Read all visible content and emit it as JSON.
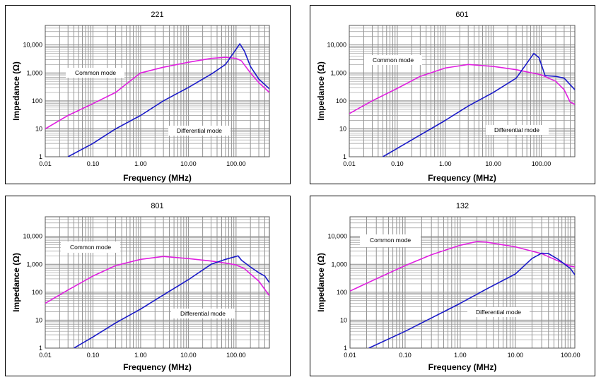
{
  "chart_data": [
    {
      "type": "line",
      "title": "221",
      "xlabel": "Frequency (MHz)",
      "ylabel": "Impedance (Ω)",
      "xscale": "log",
      "yscale": "log",
      "xlim": [
        0.01,
        500
      ],
      "ylim": [
        1,
        50000
      ],
      "x_ticks": [
        "0.01",
        "0.10",
        "1.00",
        "10.00",
        "100.00"
      ],
      "y_ticks": [
        "1",
        "10",
        "100",
        "1,000",
        "10,000"
      ],
      "grid": true,
      "annotations": {
        "common": "Common mode",
        "differential": "Differential mode"
      },
      "series": [
        {
          "name": "Common mode",
          "color": "#e020e0",
          "x": [
            0.01,
            0.03,
            0.1,
            0.3,
            0.5,
            1,
            3,
            10,
            30,
            60,
            100,
            130,
            200,
            300,
            500
          ],
          "y": [
            10,
            30,
            80,
            200,
            400,
            1000,
            1600,
            2400,
            3300,
            3600,
            3300,
            2700,
            1000,
            450,
            200
          ]
        },
        {
          "name": "Differential mode",
          "color": "#1a1ac8",
          "x": [
            0.03,
            0.1,
            0.3,
            1,
            3,
            10,
            30,
            60,
            100,
            120,
            150,
            200,
            300,
            500
          ],
          "y": [
            1,
            3,
            10,
            30,
            100,
            300,
            900,
            2000,
            7000,
            11000,
            6000,
            1700,
            600,
            270
          ]
        }
      ]
    },
    {
      "type": "line",
      "title": "601",
      "xlabel": "Frequency (MHz)",
      "ylabel": "Impedance (Ω)",
      "xscale": "log",
      "yscale": "log",
      "xlim": [
        0.01,
        500
      ],
      "ylim": [
        1,
        50000
      ],
      "x_ticks": [
        "0.01",
        "0.10",
        "1.00",
        "10.00",
        "100.00"
      ],
      "y_ticks": [
        "1",
        "10",
        "100",
        "1,000",
        "10,000"
      ],
      "grid": true,
      "annotations": {
        "common": "Common mode",
        "differential": "Differential mode"
      },
      "series": [
        {
          "name": "Common mode",
          "color": "#e020e0",
          "x": [
            0.01,
            0.03,
            0.1,
            0.3,
            1,
            3,
            10,
            30,
            100,
            200,
            300,
            400,
            500
          ],
          "y": [
            35,
            100,
            280,
            750,
            1500,
            2000,
            1700,
            1300,
            850,
            500,
            250,
            90,
            75
          ]
        },
        {
          "name": "Differential mode",
          "color": "#1a1ac8",
          "x": [
            0.05,
            0.1,
            0.3,
            1,
            3,
            10,
            30,
            50,
            70,
            90,
            120,
            200,
            300,
            500
          ],
          "y": [
            1,
            2,
            6,
            20,
            65,
            200,
            650,
            2200,
            5000,
            3500,
            800,
            750,
            650,
            250
          ]
        }
      ]
    },
    {
      "type": "line",
      "title": "801",
      "xlabel": "Frequency (MHz)",
      "ylabel": "Impedance (Ω)",
      "xscale": "log",
      "yscale": "log",
      "xlim": [
        0.01,
        500
      ],
      "ylim": [
        1,
        50000
      ],
      "x_ticks": [
        "0.01",
        "0.10",
        "1.00",
        "10.00",
        "100.00"
      ],
      "y_ticks": [
        "1",
        "10",
        "100",
        "1,000",
        "10,000"
      ],
      "grid": true,
      "annotations": {
        "common": "Common mode",
        "differential": "Differential mode"
      },
      "series": [
        {
          "name": "Common mode",
          "color": "#e020e0",
          "x": [
            0.01,
            0.03,
            0.1,
            0.3,
            1,
            3,
            10,
            30,
            60,
            100,
            150,
            200,
            300,
            500
          ],
          "y": [
            40,
            120,
            380,
            900,
            1500,
            1900,
            1600,
            1300,
            1100,
            950,
            700,
            450,
            250,
            75
          ]
        },
        {
          "name": "Differential mode",
          "color": "#1a1ac8",
          "x": [
            0.04,
            0.1,
            0.3,
            1,
            3,
            10,
            30,
            60,
            100,
            110,
            130,
            200,
            300,
            400,
            500
          ],
          "y": [
            1,
            2.5,
            8,
            25,
            80,
            280,
            1000,
            1500,
            1900,
            2000,
            1400,
            800,
            500,
            380,
            220
          ]
        }
      ]
    },
    {
      "type": "line",
      "title": "132",
      "xlabel": "Frequency (MHz)",
      "ylabel": "Impedance (Ω)",
      "xscale": "log",
      "yscale": "log",
      "xlim": [
        0.01,
        120
      ],
      "ylim": [
        1,
        50000
      ],
      "x_ticks": [
        "0.01",
        "0.10",
        "1.00",
        "10.00",
        "100.00"
      ],
      "y_ticks": [
        "1",
        "10",
        "100",
        "1,000",
        "10,000"
      ],
      "grid": true,
      "annotations": {
        "common": "Common mode",
        "differential": "Differential mode"
      },
      "series": [
        {
          "name": "Common mode",
          "color": "#e020e0",
          "x": [
            0.01,
            0.03,
            0.1,
            0.3,
            1,
            2,
            3,
            10,
            30,
            60,
            100,
            120
          ],
          "y": [
            110,
            300,
            900,
            2200,
            4800,
            6500,
            6200,
            4200,
            2400,
            1300,
            850,
            800
          ]
        },
        {
          "name": "Differential mode",
          "color": "#1a1ac8",
          "x": [
            0.022,
            0.1,
            0.3,
            1,
            3,
            10,
            20,
            30,
            40,
            60,
            100,
            120
          ],
          "y": [
            1,
            4,
            12,
            40,
            130,
            450,
            1600,
            2500,
            2400,
            1500,
            700,
            420
          ]
        }
      ]
    }
  ]
}
